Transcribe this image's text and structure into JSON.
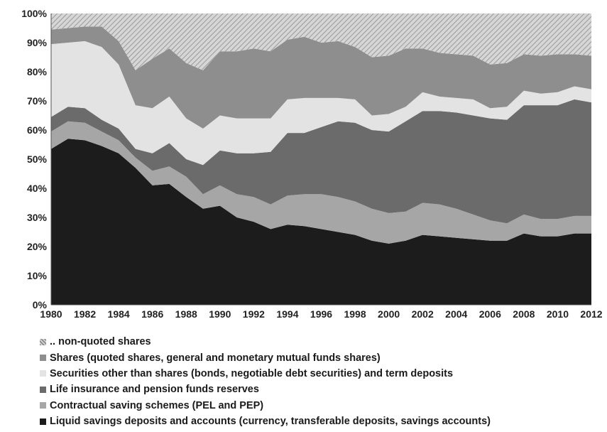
{
  "chart_data": {
    "type": "area",
    "stacked": true,
    "percent": true,
    "x": [
      1980,
      1981,
      1982,
      1983,
      1984,
      1985,
      1986,
      1987,
      1988,
      1989,
      1990,
      1991,
      1992,
      1993,
      1994,
      1995,
      1996,
      1997,
      1998,
      1999,
      2000,
      2001,
      2002,
      2003,
      2004,
      2005,
      2006,
      2007,
      2008,
      2009,
      2010,
      2011,
      2012
    ],
    "x_ticks": [
      "1980",
      "1982",
      "1984",
      "1986",
      "1988",
      "1990",
      "1992",
      "1994",
      "1996",
      "1998",
      "2000",
      "2002",
      "2004",
      "2006",
      "2008",
      "2010",
      "2012"
    ],
    "y_ticks": [
      "0%",
      "10%",
      "20%",
      "30%",
      "40%",
      "50%",
      "60%",
      "70%",
      "80%",
      "90%",
      "100%"
    ],
    "ylim": [
      0,
      100
    ],
    "grid": false,
    "legend_position": "bottom",
    "series": [
      {
        "name": "Liquid savings deposits and accounts (currency, transferable deposits, savings accounts)",
        "color": "#1c1c1c",
        "pattern": "solid",
        "values": [
          53.5,
          57,
          56.5,
          54.5,
          52,
          47,
          41,
          41.5,
          37,
          33,
          34,
          30,
          28.5,
          26,
          27.5,
          27,
          26,
          25,
          24,
          22,
          21,
          22,
          24,
          23.5,
          23,
          22.5,
          22,
          22,
          24.5,
          23.5,
          23.5,
          24.5,
          24.5
        ]
      },
      {
        "name": "Contractual saving schemes (PEL and PEP)",
        "color": "#a6a6a6",
        "pattern": "solid",
        "values": [
          6,
          6,
          6,
          5,
          4.5,
          3.5,
          5,
          6,
          7,
          5,
          7,
          8,
          8.5,
          8.5,
          10,
          11,
          12,
          12,
          11.5,
          11,
          10.5,
          10,
          11,
          11,
          10,
          8.5,
          7,
          6,
          6.5,
          6,
          6,
          6,
          6
        ]
      },
      {
        "name": "Life insurance and pension funds reserves",
        "color": "#6b6b6b",
        "pattern": "solid",
        "values": [
          5,
          5,
          5,
          4,
          4,
          3,
          6,
          8,
          6,
          10,
          12,
          14,
          15,
          18,
          21.5,
          21,
          23,
          26,
          27,
          27,
          28,
          31,
          31.5,
          32,
          33,
          34,
          35,
          35.5,
          37.5,
          39,
          39,
          40,
          39
        ]
      },
      {
        "name": "Securities other than shares (bonds, negotiable debt securities) and term deposits",
        "color": "#e3e3e3",
        "pattern": "solid",
        "values": [
          25,
          22,
          23,
          25,
          22,
          15,
          15.5,
          16,
          14,
          12.5,
          12,
          12,
          12,
          11.5,
          11.5,
          12,
          10,
          8,
          8,
          5,
          6,
          5,
          6.5,
          5,
          5,
          5.5,
          3.5,
          4.5,
          5,
          4,
          4.5,
          4.5,
          4.5
        ]
      },
      {
        "name": "Shares (quoted shares, general and monetary mutual funds shares)",
        "color": "#8e8e8e",
        "pattern": "solid",
        "values": [
          5,
          5,
          5,
          7,
          8,
          12,
          17,
          16.5,
          19,
          20,
          22,
          23,
          24,
          23,
          20.5,
          21,
          19,
          19.5,
          18,
          20,
          20,
          20,
          15,
          15,
          15,
          15,
          15,
          15,
          12.5,
          13,
          13,
          11,
          11.5
        ]
      },
      {
        "name": ".. non-quoted shares",
        "color": "#cfcfcf",
        "pattern": "hatch",
        "values": [
          5.5,
          5,
          4.5,
          4.5,
          9.5,
          19.5,
          15.5,
          12,
          17,
          19.5,
          13,
          13,
          12,
          13,
          9,
          8,
          10,
          9.5,
          11.5,
          15,
          14.5,
          12,
          12,
          13.5,
          14,
          14.5,
          17.5,
          17,
          14,
          14.5,
          14,
          14,
          14.5
        ]
      }
    ],
    "legend_order": [
      5,
      4,
      3,
      2,
      1,
      0
    ]
  }
}
